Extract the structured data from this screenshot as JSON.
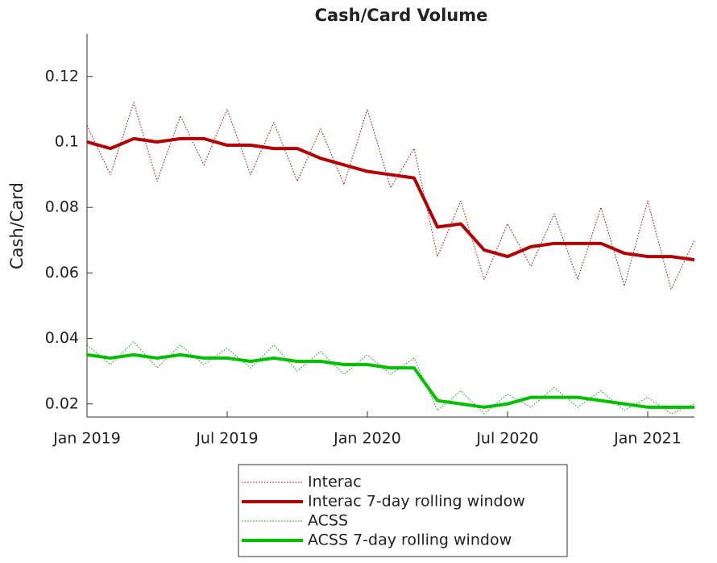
{
  "chart_data": {
    "type": "line",
    "title": "Cash/Card Volume",
    "y_label": "Cash/Card",
    "x": [
      "2019-01",
      "2019-02",
      "2019-03",
      "2019-04",
      "2019-05",
      "2019-06",
      "2019-07",
      "2019-08",
      "2019-09",
      "2019-10",
      "2019-11",
      "2019-12",
      "2020-01",
      "2020-02",
      "2020-03",
      "2020-04",
      "2020-05",
      "2020-06",
      "2020-07",
      "2020-08",
      "2020-09",
      "2020-10",
      "2020-11",
      "2020-12",
      "2021-01",
      "2021-02",
      "2021-03"
    ],
    "xlim": [
      "2019-01",
      "2021-03"
    ],
    "xticks": [
      {
        "value": "2019-01",
        "label": "Jan 2019"
      },
      {
        "value": "2019-07",
        "label": "Jul 2019"
      },
      {
        "value": "2020-01",
        "label": "Jan 2020"
      },
      {
        "value": "2020-07",
        "label": "Jul 2020"
      },
      {
        "value": "2021-01",
        "label": "Jan 2021"
      }
    ],
    "ylim": [
      0.016,
      0.133
    ],
    "yticks": [
      0.02,
      0.04,
      0.06,
      0.08,
      0.1,
      0.12
    ],
    "series": [
      {
        "name": "Interac",
        "color": "#a30000",
        "style": "dotted",
        "width": 1,
        "values": [
          0.105,
          0.09,
          0.112,
          0.088,
          0.108,
          0.093,
          0.11,
          0.09,
          0.106,
          0.088,
          0.104,
          0.087,
          0.11,
          0.086,
          0.098,
          0.065,
          0.082,
          0.058,
          0.075,
          0.062,
          0.078,
          0.058,
          0.08,
          0.056,
          0.082,
          0.055,
          0.07
        ]
      },
      {
        "name": "Interac  7-day rolling window",
        "color": "#b30000",
        "style": "solid",
        "width": 4,
        "values": [
          0.1,
          0.098,
          0.101,
          0.1,
          0.101,
          0.101,
          0.099,
          0.099,
          0.098,
          0.098,
          0.095,
          0.093,
          0.091,
          0.09,
          0.089,
          0.074,
          0.075,
          0.067,
          0.065,
          0.068,
          0.069,
          0.069,
          0.069,
          0.066,
          0.065,
          0.065,
          0.064
        ]
      },
      {
        "name": "ACSS",
        "color": "#00a000",
        "style": "dotted",
        "width": 1,
        "values": [
          0.038,
          0.032,
          0.039,
          0.031,
          0.038,
          0.032,
          0.037,
          0.031,
          0.038,
          0.03,
          0.036,
          0.029,
          0.035,
          0.029,
          0.034,
          0.018,
          0.024,
          0.017,
          0.023,
          0.019,
          0.025,
          0.019,
          0.024,
          0.018,
          0.022,
          0.017,
          0.02
        ]
      },
      {
        "name": "ACSS 7-day rolling window",
        "color": "#00c000",
        "style": "solid",
        "width": 4,
        "values": [
          0.035,
          0.034,
          0.035,
          0.034,
          0.035,
          0.034,
          0.034,
          0.033,
          0.034,
          0.033,
          0.033,
          0.032,
          0.032,
          0.031,
          0.031,
          0.021,
          0.02,
          0.019,
          0.02,
          0.022,
          0.022,
          0.022,
          0.021,
          0.02,
          0.019,
          0.019,
          0.019
        ]
      }
    ]
  }
}
